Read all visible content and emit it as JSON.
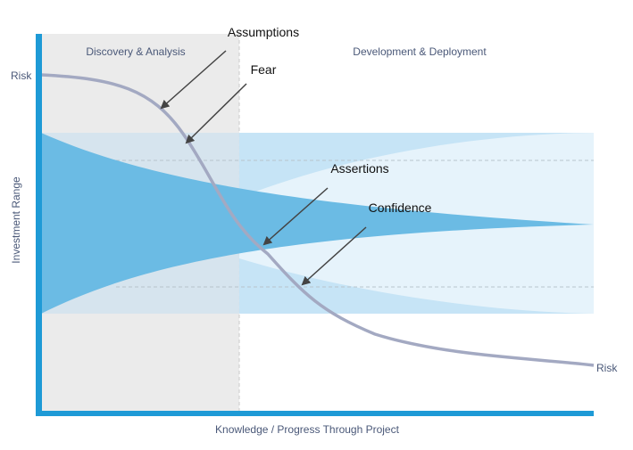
{
  "phases": [
    "Discovery & Analysis",
    "Development & Deployment"
  ],
  "axes": {
    "y_label": "Investment Range",
    "x_label": "Knowledge / Progress Through Project",
    "risk_start": "Risk",
    "risk_end": "Risk"
  },
  "annotations": [
    "Assumptions",
    "Fear",
    "Assertions",
    "Confidence"
  ]
}
